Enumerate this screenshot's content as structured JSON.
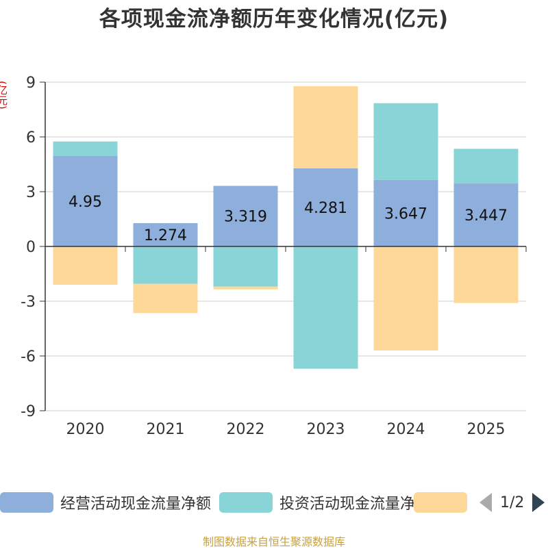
{
  "chart_data": {
    "type": "bar",
    "stacked": true,
    "title": "各项现金流净额历年变化情况(亿元)",
    "ylabel": "(亿元)",
    "ylim": [
      -9,
      9
    ],
    "yticks": [
      9,
      6,
      3,
      0,
      -3,
      -6,
      -9
    ],
    "categories": [
      "2020",
      "2021",
      "2022",
      "2023",
      "2024",
      "2025"
    ],
    "series": [
      {
        "name": "经营活动现金流量净额",
        "color": "#8eaedb",
        "values": [
          4.95,
          1.274,
          3.319,
          4.281,
          3.647,
          3.447
        ],
        "data_labels": [
          "4.95",
          "1.274",
          "3.319",
          "4.281",
          "3.647",
          "3.447"
        ]
      },
      {
        "name": "投资活动现金流量净额",
        "color": "#88d4d6",
        "values": [
          0.8,
          -2.05,
          -2.2,
          -6.7,
          4.2,
          1.9
        ]
      },
      {
        "name": "",
        "color": "#fdd898",
        "values": [
          -2.1,
          -1.6,
          -0.15,
          4.5,
          -5.7,
          -3.1
        ]
      }
    ],
    "legend_position": "bottom"
  },
  "legend": {
    "page": "1/2"
  },
  "footer": "制图数据来自恒生聚源数据库"
}
